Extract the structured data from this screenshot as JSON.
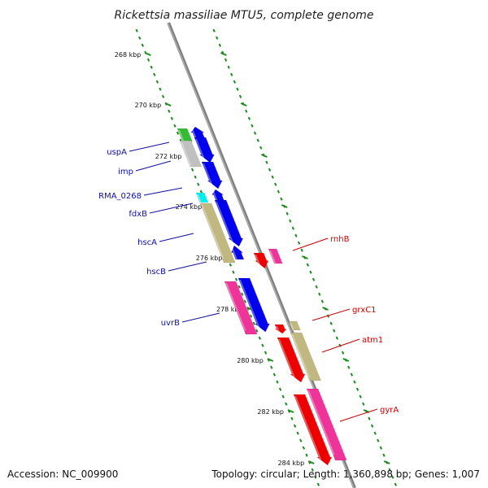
{
  "title": "Rickettsia massiliae MTU5, complete genome",
  "footer": {
    "accession": "Accession: NC_009900",
    "summary": "Topology: circular; Length: 1,360,898 bp; Genes: 1,007"
  },
  "colors": {
    "backbone": "#808080",
    "tick": "#1f8a1f",
    "label_left": "#1010a0",
    "label_right": "#cc0000",
    "blue": "#0000ee",
    "red": "#ee0000",
    "pink": "#ee3399",
    "khaki": "#c0b880",
    "green": "#33bb33",
    "grey": "#c0c0c0",
    "cyan": "#00eeee"
  },
  "ticks": [
    "268 kbp",
    "270 kbp",
    "272 kbp",
    "274 kbp",
    "276 kbp",
    "278 kbp",
    "280 kbp",
    "282 kbp",
    "284 kbp"
  ],
  "genes_left": [
    {
      "name": "uspA",
      "color": "green"
    },
    {
      "name": "imp",
      "color": "grey"
    },
    {
      "name": "RMA_0268",
      "color": "cyan"
    },
    {
      "name": "fdxB",
      "color": "blue"
    },
    {
      "name": "hscA",
      "color": "khaki"
    },
    {
      "name": "hscB",
      "color": "blue"
    },
    {
      "name": "uvrB",
      "color": "pink"
    }
  ],
  "genes_right": [
    {
      "name": "rnhB",
      "color": "pink"
    },
    {
      "name": "grxC1",
      "color": "khaki"
    },
    {
      "name": "atm1",
      "color": "red"
    },
    {
      "name": "gyrA",
      "color": "pink"
    }
  ]
}
